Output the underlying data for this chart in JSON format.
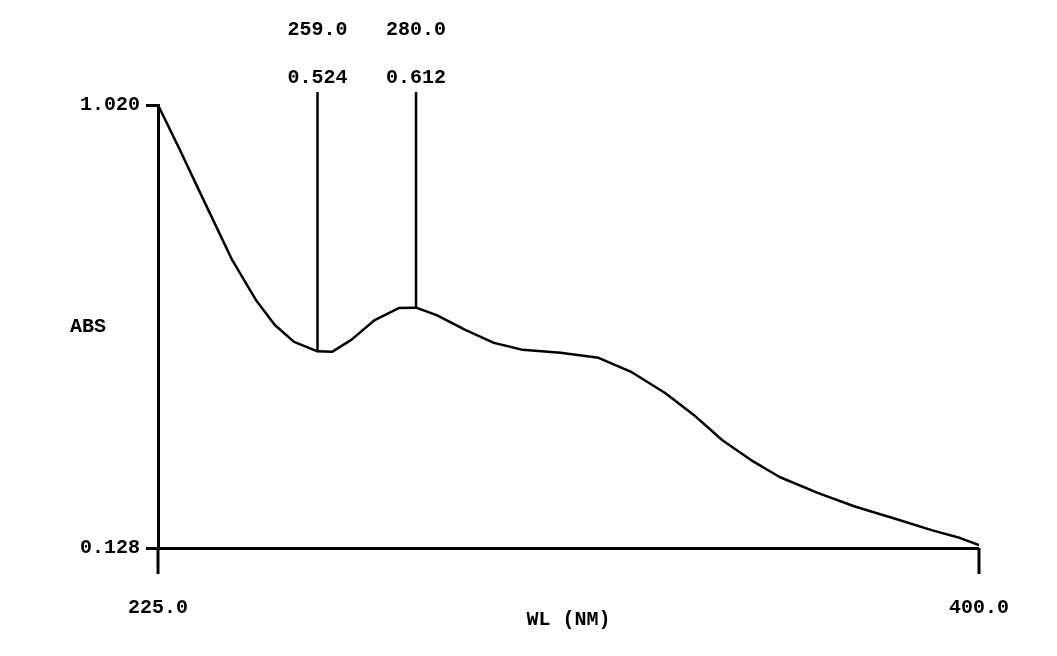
{
  "chart_data": {
    "type": "line",
    "xlabel": "WL (NM)",
    "ylabel": "ABS",
    "x": [
      225,
      229.7,
      234.7,
      240.8,
      245.9,
      249.9,
      254,
      259,
      262.1,
      266.2,
      271.2,
      276.3,
      280,
      284.4,
      290.5,
      296.6,
      302.7,
      310.8,
      318.9,
      326,
      333.1,
      339.2,
      345.3,
      351.4,
      357.5,
      365.6,
      373.7,
      381.8,
      389.9,
      396,
      400
    ],
    "series": [
      {
        "color": "#000000",
        "values": [
          1.02,
          0.929,
          0.829,
          0.708,
          0.627,
          0.577,
          0.543,
          0.524,
          0.523,
          0.547,
          0.587,
          0.611,
          0.612,
          0.597,
          0.567,
          0.541,
          0.527,
          0.521,
          0.511,
          0.482,
          0.44,
          0.396,
          0.345,
          0.305,
          0.271,
          0.239,
          0.211,
          0.188,
          0.164,
          0.148,
          0.134
        ]
      }
    ],
    "xlim": [
      225,
      400
    ],
    "xticks": [
      {
        "value": 225,
        "label": "225.0"
      },
      {
        "value": 400,
        "label": "400.0"
      }
    ],
    "ylim": [
      0.128,
      1.02
    ],
    "yticks": [
      {
        "value": 0.128,
        "label": "0.128"
      },
      {
        "value": 1.02,
        "label": "1.020"
      }
    ],
    "annotations": [
      "259.0",
      {
        "text": "0.524",
        "x": 259,
        "y": 0.524
      },
      "280.0",
      {
        "text": "0.612",
        "x": 280,
        "y": 0.612
      }
    ],
    "grid": false,
    "legend": false,
    "marker": "none",
    "line_style": "solid"
  }
}
